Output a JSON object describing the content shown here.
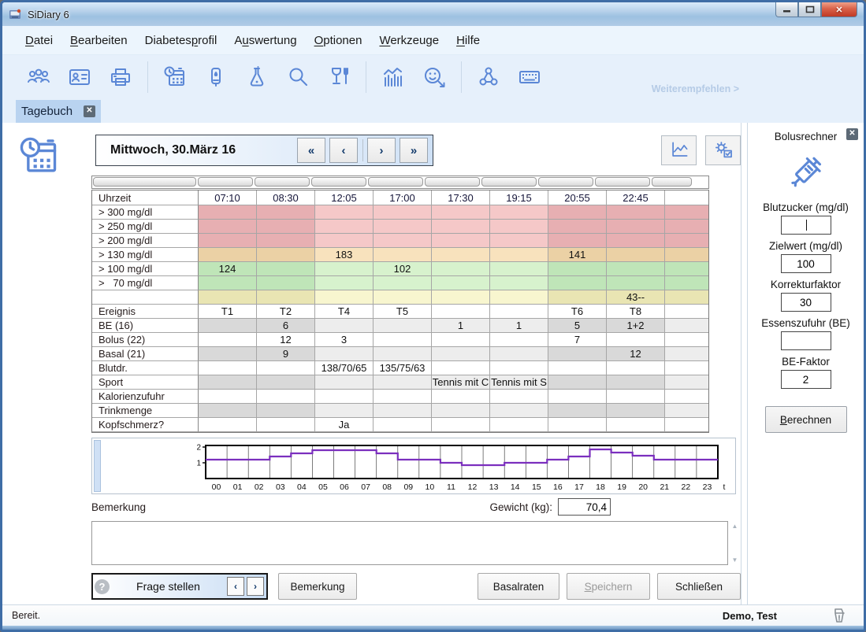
{
  "window": {
    "title": "SiDiary 6",
    "min": "—",
    "max": "□",
    "close": "✕"
  },
  "menu": {
    "items": [
      {
        "id": "datei",
        "pre": "",
        "key": "D",
        "post": "atei"
      },
      {
        "id": "bearbeiten",
        "pre": "",
        "key": "B",
        "post": "earbeiten"
      },
      {
        "id": "diabetesprofil",
        "pre": "Diabetes",
        "key": "p",
        "post": "rofil"
      },
      {
        "id": "auswertung",
        "pre": "A",
        "key": "u",
        "post": "swertung"
      },
      {
        "id": "optionen",
        "pre": "",
        "key": "O",
        "post": "ptionen"
      },
      {
        "id": "werkzeuge",
        "pre": "",
        "key": "W",
        "post": "erkzeuge"
      },
      {
        "id": "hilfe",
        "pre": "",
        "key": "H",
        "post": "ilfe"
      }
    ]
  },
  "toolbar": {
    "items": [
      {
        "name": "users-icon"
      },
      {
        "name": "idcard-icon"
      },
      {
        "name": "printer-icon"
      },
      {
        "name": "separator"
      },
      {
        "name": "diary-calendar-icon"
      },
      {
        "name": "meter-icon"
      },
      {
        "name": "flask-icon"
      },
      {
        "name": "search-icon"
      },
      {
        "name": "food-glass-icon"
      },
      {
        "name": "separator"
      },
      {
        "name": "statistics-icon"
      },
      {
        "name": "wellbeing-smiley-icon"
      },
      {
        "name": "separator"
      },
      {
        "name": "share-icon"
      },
      {
        "name": "keyboard-icon"
      }
    ],
    "recommend_link": "Weiterempfehlen >"
  },
  "tab": {
    "label": "Tagebuch",
    "close": "x"
  },
  "diary": {
    "date_label": "Mittwoch, 30.März 16",
    "nav": [
      "«",
      "‹",
      "›",
      "»"
    ],
    "uhrzeit_label": "Uhrzeit",
    "times": [
      "07:10",
      "08:30",
      "12:05",
      "17:00",
      "17:30",
      "19:15",
      "20:55",
      "22:45",
      ""
    ],
    "night_cols_band": [
      0,
      1,
      6,
      7,
      8
    ],
    "night_cols_data": [
      0,
      1,
      6,
      7
    ],
    "band_rows": [
      {
        "label": "> 300 mg/dl",
        "band": "pink",
        "cells": [
          "",
          "",
          "",
          "",
          "",
          "",
          "",
          "",
          ""
        ]
      },
      {
        "label": "> 250 mg/dl",
        "band": "pink",
        "cells": [
          "",
          "",
          "",
          "",
          "",
          "",
          "",
          "",
          ""
        ]
      },
      {
        "label": "> 200 mg/dl",
        "band": "pink",
        "cells": [
          "",
          "",
          "",
          "",
          "",
          "",
          "",
          "",
          ""
        ]
      },
      {
        "label": "> 130 mg/dl",
        "band": "tan",
        "cells": [
          "",
          "",
          "183",
          "",
          "",
          "",
          "141",
          "",
          ""
        ]
      },
      {
        "label": "> 100 mg/dl",
        "band": "green",
        "cells": [
          "124",
          "",
          "",
          "102",
          "",
          "",
          "",
          "",
          ""
        ]
      },
      {
        "label": ">   70 mg/dl",
        "band": "green",
        "cells": [
          "",
          "",
          "",
          "",
          "",
          "",
          "",
          "",
          ""
        ]
      },
      {
        "label": "",
        "band": "yellow",
        "cells": [
          "",
          "",
          "",
          "",
          "",
          "",
          "",
          "43--",
          ""
        ]
      }
    ],
    "data_rows": [
      {
        "label": "Ereignis",
        "shaded": false,
        "cells": [
          "T1",
          "T2",
          "T4",
          "T5",
          "",
          "",
          "T6",
          "T8",
          ""
        ]
      },
      {
        "label": "BE (16)",
        "shaded": true,
        "cells": [
          "",
          "6",
          "",
          "",
          "1",
          "1",
          "5",
          "1+2",
          ""
        ]
      },
      {
        "label": "Bolus (22)",
        "shaded": false,
        "cells": [
          "",
          "12",
          "3",
          "",
          "",
          "",
          "7",
          "",
          ""
        ]
      },
      {
        "label": "Basal (21)",
        "shaded": true,
        "cells": [
          "",
          "9",
          "",
          "",
          "",
          "",
          "",
          "12",
          ""
        ]
      },
      {
        "label": "Blutdr.",
        "shaded": false,
        "cells": [
          "",
          "",
          "138/70/65",
          "135/75/63",
          "",
          "",
          "",
          "",
          ""
        ]
      },
      {
        "label": "Sport",
        "shaded": true,
        "cells": [
          "",
          "",
          "",
          "",
          "Tennis mit C",
          "Tennis mit S",
          "",
          "",
          ""
        ]
      },
      {
        "label": "Kalorienzufuhr",
        "shaded": false,
        "cells": [
          "",
          "",
          "",
          "",
          "",
          "",
          "",
          "",
          ""
        ]
      },
      {
        "label": "Trinkmenge",
        "shaded": true,
        "cells": [
          "",
          "",
          "",
          "",
          "",
          "",
          "",
          "",
          ""
        ]
      },
      {
        "label": "Kopfschmerz?",
        "shaded": false,
        "cells": [
          "",
          "",
          "Ja",
          "",
          "",
          "",
          "",
          "",
          ""
        ]
      }
    ]
  },
  "chart_data": {
    "type": "line",
    "subtype": "step",
    "x": [
      "00",
      "01",
      "02",
      "03",
      "04",
      "05",
      "06",
      "07",
      "08",
      "09",
      "10",
      "11",
      "12",
      "13",
      "14",
      "15",
      "16",
      "17",
      "18",
      "19",
      "20",
      "21",
      "22",
      "23"
    ],
    "x_end_label": "t",
    "values": [
      1.2,
      1.2,
      1.2,
      1.4,
      1.6,
      1.8,
      1.8,
      1.8,
      1.6,
      1.2,
      1.2,
      1.0,
      0.85,
      0.85,
      1.0,
      1.0,
      1.2,
      1.4,
      1.85,
      1.65,
      1.45,
      1.2,
      1.2,
      1.2
    ],
    "yticks": [
      1,
      2
    ],
    "ylim": [
      0,
      2.1
    ],
    "grid": "vertical-hourly",
    "line_color": "#7b2fbe"
  },
  "bottom": {
    "bemerkung_label": "Bemerkung",
    "gewicht_label": "Gewicht (kg):",
    "gewicht_value": "70,4",
    "frage_label": "Frage stellen",
    "frage_help": "?",
    "frage_nav": [
      "‹",
      "›"
    ],
    "bemerkung_button": "Bemerkung",
    "basalraten_button": "Basalraten",
    "speichern_button": {
      "pre": "",
      "key": "S",
      "post": "peichern",
      "disabled": true
    },
    "schliessen_button": "Schließen"
  },
  "bolus_panel": {
    "title": "Bolusrechner",
    "close": "x",
    "fields": [
      {
        "label": "Blutzucker (mg/dl)",
        "value": "",
        "caret": true
      },
      {
        "label": "Zielwert (mg/dl)",
        "value": "100",
        "caret": false
      },
      {
        "label": "Korrekturfaktor",
        "value": "30",
        "caret": false
      },
      {
        "label": "Essenszufuhr (BE)",
        "value": "",
        "caret": false
      },
      {
        "label": "BE-Faktor",
        "value": "2",
        "caret": false
      }
    ],
    "button": {
      "pre": "",
      "key": "B",
      "post": "erechnen"
    }
  },
  "status": {
    "left": "Bereit.",
    "right": "Demo, Test"
  },
  "colors": {
    "accent": "#5b87d6",
    "band_pink": "#f5c8c8",
    "band_pink_night": "#e7afb2",
    "band_tan": "#f8e2bd",
    "band_tan_night": "#ebd1a5",
    "band_green": "#d7f2cd",
    "band_green_night": "#bfe5b8",
    "band_yellow": "#f8f6cf",
    "band_yellow_night": "#e9e5b3",
    "row_grey": "#ededed",
    "row_grey_night": "#d9d9d9",
    "chart_line": "#7b2fbe"
  }
}
